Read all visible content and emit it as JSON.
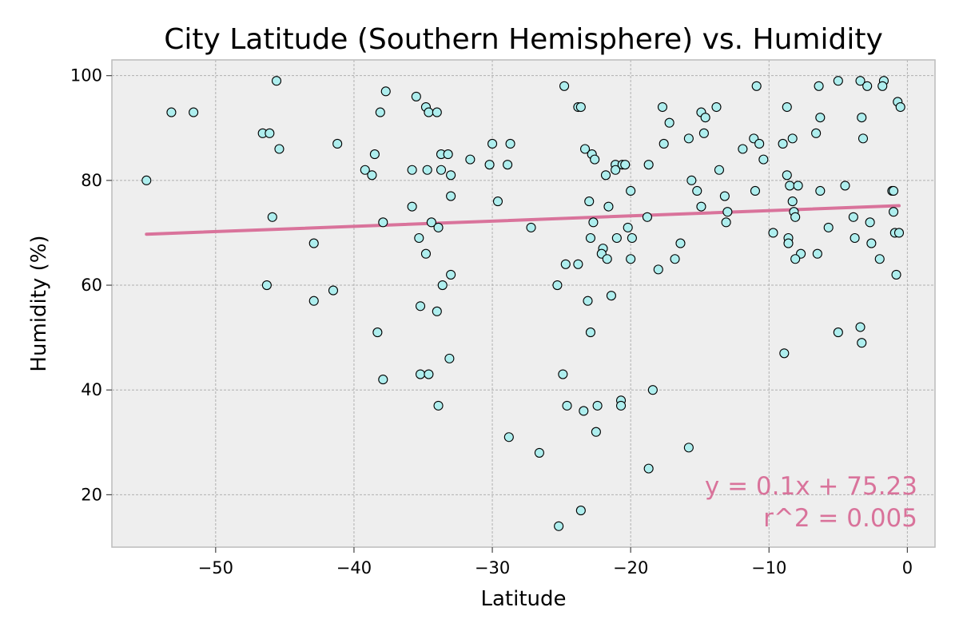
{
  "chart_data": {
    "type": "scatter",
    "title": "City Latitude (Southern Hemisphere) vs. Humidity",
    "xlabel": "Latitude",
    "ylabel": "Humidity (%)",
    "xlim": [
      -57.5,
      2
    ],
    "ylim": [
      10,
      103
    ],
    "xticks": [
      -50,
      -40,
      -30,
      -20,
      -10,
      0
    ],
    "xtick_labels": [
      "−50",
      "−40",
      "−30",
      "−20",
      "−10",
      "0"
    ],
    "yticks": [
      20,
      40,
      60,
      80,
      100
    ],
    "ytick_labels": [
      "20",
      "40",
      "60",
      "80",
      "100"
    ],
    "grid": true,
    "colors": {
      "plot_background": "#eeeeee",
      "point_fill": "#aeeeee",
      "point_edge": "#000000",
      "regression_line": "#d9739b",
      "grid": "#b0b0b0",
      "frame": "#bcbcbc"
    },
    "points": [
      [
        -55.0,
        80
      ],
      [
        -53.2,
        93
      ],
      [
        -51.6,
        93
      ],
      [
        -46.6,
        89
      ],
      [
        -46.1,
        89
      ],
      [
        -45.6,
        99
      ],
      [
        -45.4,
        86
      ],
      [
        -45.9,
        73
      ],
      [
        -46.3,
        60
      ],
      [
        -42.9,
        68
      ],
      [
        -42.9,
        57
      ],
      [
        -41.2,
        87
      ],
      [
        -41.5,
        59
      ],
      [
        -39.2,
        82
      ],
      [
        -38.7,
        81
      ],
      [
        -38.5,
        85
      ],
      [
        -38.1,
        93
      ],
      [
        -37.7,
        97
      ],
      [
        -37.9,
        72
      ],
      [
        -37.9,
        42
      ],
      [
        -38.3,
        51
      ],
      [
        -35.5,
        96
      ],
      [
        -35.8,
        82
      ],
      [
        -35.8,
        75
      ],
      [
        -35.3,
        69
      ],
      [
        -34.8,
        66
      ],
      [
        -35.2,
        56
      ],
      [
        -35.2,
        43
      ],
      [
        -34.6,
        43
      ],
      [
        -34.8,
        94
      ],
      [
        -34.6,
        93
      ],
      [
        -34.7,
        82
      ],
      [
        -34.4,
        72
      ],
      [
        -34.0,
        93
      ],
      [
        -33.7,
        85
      ],
      [
        -33.2,
        85
      ],
      [
        -33.7,
        82
      ],
      [
        -33.0,
        81
      ],
      [
        -33.0,
        77
      ],
      [
        -33.9,
        71
      ],
      [
        -33.6,
        60
      ],
      [
        -33.0,
        62
      ],
      [
        -34.0,
        55
      ],
      [
        -33.1,
        46
      ],
      [
        -33.9,
        37
      ],
      [
        -31.6,
        84
      ],
      [
        -30.2,
        83
      ],
      [
        -30.0,
        87
      ],
      [
        -29.6,
        76
      ],
      [
        -28.7,
        87
      ],
      [
        -28.9,
        83
      ],
      [
        -28.8,
        31
      ],
      [
        -27.2,
        71
      ],
      [
        -26.6,
        28
      ],
      [
        -24.8,
        98
      ],
      [
        -25.3,
        60
      ],
      [
        -24.7,
        64
      ],
      [
        -24.9,
        43
      ],
      [
        -24.6,
        37
      ],
      [
        -25.2,
        14
      ],
      [
        -23.8,
        94
      ],
      [
        -23.6,
        94
      ],
      [
        -23.3,
        86
      ],
      [
        -23.8,
        64
      ],
      [
        -23.0,
        76
      ],
      [
        -22.8,
        85
      ],
      [
        -22.6,
        84
      ],
      [
        -22.9,
        69
      ],
      [
        -22.7,
        72
      ],
      [
        -23.1,
        57
      ],
      [
        -22.9,
        51
      ],
      [
        -22.4,
        37
      ],
      [
        -23.4,
        36
      ],
      [
        -22.5,
        32
      ],
      [
        -23.6,
        17
      ],
      [
        -21.8,
        81
      ],
      [
        -21.1,
        83
      ],
      [
        -21.1,
        82
      ],
      [
        -20.6,
        83
      ],
      [
        -20.4,
        83
      ],
      [
        -21.6,
        75
      ],
      [
        -22.0,
        67
      ],
      [
        -22.1,
        66
      ],
      [
        -21.7,
        65
      ],
      [
        -21.0,
        69
      ],
      [
        -21.4,
        58
      ],
      [
        -20.0,
        78
      ],
      [
        -20.2,
        71
      ],
      [
        -19.9,
        69
      ],
      [
        -20.0,
        65
      ],
      [
        -20.7,
        38
      ],
      [
        -20.7,
        37
      ],
      [
        -18.7,
        83
      ],
      [
        -18.8,
        73
      ],
      [
        -18.4,
        40
      ],
      [
        -18.7,
        25
      ],
      [
        -17.7,
        94
      ],
      [
        -17.6,
        87
      ],
      [
        -17.2,
        91
      ],
      [
        -18.0,
        63
      ],
      [
        -16.8,
        65
      ],
      [
        -16.4,
        68
      ],
      [
        -15.8,
        88
      ],
      [
        -15.6,
        80
      ],
      [
        -15.2,
        78
      ],
      [
        -14.9,
        93
      ],
      [
        -14.6,
        92
      ],
      [
        -14.7,
        89
      ],
      [
        -14.9,
        75
      ],
      [
        -15.8,
        29
      ],
      [
        -13.8,
        94
      ],
      [
        -13.6,
        82
      ],
      [
        -13.2,
        77
      ],
      [
        -13.0,
        74
      ],
      [
        -13.1,
        72
      ],
      [
        -11.9,
        86
      ],
      [
        -11.1,
        88
      ],
      [
        -10.9,
        98
      ],
      [
        -10.7,
        87
      ],
      [
        -10.4,
        84
      ],
      [
        -11.0,
        78
      ],
      [
        -9.7,
        70
      ],
      [
        -9.0,
        87
      ],
      [
        -8.7,
        94
      ],
      [
        -8.7,
        81
      ],
      [
        -8.5,
        79
      ],
      [
        -8.3,
        88
      ],
      [
        -8.3,
        76
      ],
      [
        -8.2,
        74
      ],
      [
        -7.9,
        79
      ],
      [
        -8.1,
        73
      ],
      [
        -8.6,
        69
      ],
      [
        -8.6,
        68
      ],
      [
        -7.7,
        66
      ],
      [
        -8.1,
        65
      ],
      [
        -8.9,
        47
      ],
      [
        -6.4,
        98
      ],
      [
        -6.3,
        92
      ],
      [
        -6.6,
        89
      ],
      [
        -6.3,
        78
      ],
      [
        -5.7,
        71
      ],
      [
        -6.5,
        66
      ],
      [
        -5.0,
        99
      ],
      [
        -4.5,
        79
      ],
      [
        -3.9,
        73
      ],
      [
        -3.8,
        69
      ],
      [
        -5.0,
        51
      ],
      [
        -3.4,
        99
      ],
      [
        -3.3,
        92
      ],
      [
        -3.2,
        88
      ],
      [
        -2.9,
        98
      ],
      [
        -2.7,
        72
      ],
      [
        -2.6,
        68
      ],
      [
        -3.4,
        52
      ],
      [
        -3.3,
        49
      ],
      [
        -2.0,
        65
      ],
      [
        -1.7,
        99
      ],
      [
        -1.8,
        98
      ],
      [
        -1.1,
        78
      ],
      [
        -1.0,
        78
      ],
      [
        -1.0,
        74
      ],
      [
        -0.9,
        70
      ],
      [
        -0.6,
        70
      ],
      [
        -0.7,
        95
      ],
      [
        -0.5,
        94
      ],
      [
        -0.8,
        62
      ]
    ],
    "regression": {
      "slope": 0.1,
      "intercept": 75.23,
      "x_range": [
        -55,
        -0.6
      ]
    },
    "annotations": [
      "y = 0.1x + 75.23",
      "r^2 = 0.005"
    ]
  }
}
